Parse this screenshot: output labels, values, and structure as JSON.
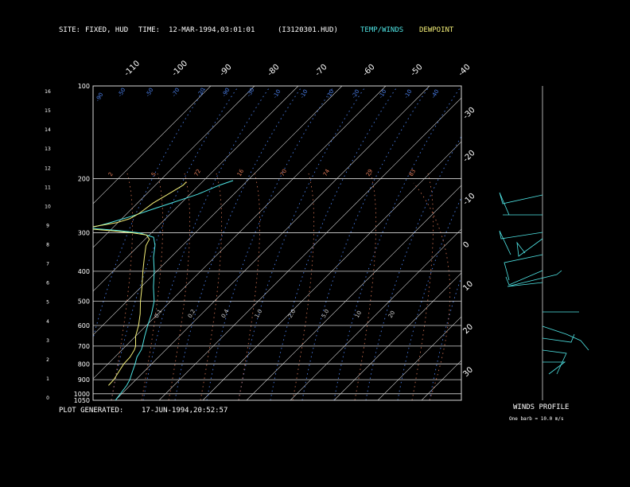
{
  "header": {
    "site_label": "SITE:",
    "site_value": "FIXED, HUD",
    "time_label": "TIME:",
    "time_value": "12-MAR-1994,03:01:01",
    "file_id": "(I3120301.HUD)",
    "legend_temp": "TEMP/WINDS",
    "legend_dew": "DEWPOINT"
  },
  "footer": {
    "generated_label": "PLOT GENERATED:",
    "generated_value": "17-JUN-1994,20:52:57",
    "winds_title": "WINDS PROFILE",
    "barb_note": "One barb = 10.0 m/s"
  },
  "colors": {
    "temp": "#4fe6e6",
    "dew": "#f5f078",
    "isotherm": "#d8d8d8",
    "isobar": "#d8d8d8",
    "dry_adiabat": "#4a7ee8",
    "mixing_ratio": "#e07a58"
  },
  "chart_data": {
    "type": "line",
    "pressure_levels": [
      "100",
      "200",
      "300",
      "400",
      "500",
      "600",
      "700",
      "800",
      "900",
      "1000",
      "1050"
    ],
    "height_km_ticks": [
      "16",
      "15",
      "14",
      "13",
      "12",
      "11",
      "10",
      "9",
      "8",
      "7",
      "6",
      "5",
      "4",
      "3",
      "2",
      "1",
      "0"
    ],
    "isotherm_top_labels": [
      "-110",
      "-100",
      "-90",
      "-80",
      "-70",
      "-60",
      "-50",
      "-40"
    ],
    "isotherm_right_labels": [
      "-30",
      "-20",
      "-10",
      "0",
      "10",
      "20",
      "30"
    ],
    "dry_adiabat_labels": [
      "-90",
      "-50",
      "-50",
      "-70",
      "-20",
      "-90",
      "-30",
      "-10",
      "-10",
      "-10",
      "-20",
      "-10",
      "-10",
      "-40"
    ],
    "mixing_ratio_labels": [
      "2",
      "5",
      "72",
      "16",
      "70",
      "74",
      "29",
      "83"
    ],
    "lower_ratio_labels": [
      "0.1",
      "0.2",
      "0.4",
      "1.0",
      "2.0",
      "5.0",
      "10",
      "20"
    ],
    "temperature": {
      "name": "TEMP/WINDS",
      "points": [
        [
          1050,
          -13
        ],
        [
          940,
          -14
        ],
        [
          900,
          -15
        ],
        [
          850,
          -17
        ],
        [
          800,
          -19
        ],
        [
          760,
          -21
        ],
        [
          720,
          -22
        ],
        [
          700,
          -23
        ],
        [
          650,
          -26
        ],
        [
          600,
          -29
        ],
        [
          550,
          -32
        ],
        [
          500,
          -36
        ],
        [
          450,
          -42
        ],
        [
          400,
          -48
        ],
        [
          360,
          -54
        ],
        [
          330,
          -58
        ],
        [
          310,
          -62
        ],
        [
          300,
          -70
        ],
        [
          295,
          -80
        ],
        [
          292,
          -88
        ],
        [
          290,
          -94
        ],
        [
          280,
          -88
        ],
        [
          265,
          -80
        ],
        [
          250,
          -73
        ],
        [
          240,
          -68
        ],
        [
          225,
          -60
        ],
        [
          210,
          -54
        ],
        [
          203,
          -50
        ]
      ]
    },
    "dewpoint": {
      "name": "DEWPOINT",
      "points": [
        [
          940,
          -22
        ],
        [
          900,
          -22
        ],
        [
          850,
          -23
        ],
        [
          800,
          -24
        ],
        [
          760,
          -24
        ],
        [
          720,
          -25
        ],
        [
          700,
          -26
        ],
        [
          650,
          -30
        ],
        [
          600,
          -33
        ],
        [
          550,
          -37
        ],
        [
          500,
          -42
        ],
        [
          450,
          -47
        ],
        [
          400,
          -53
        ],
        [
          360,
          -58
        ],
        [
          330,
          -62
        ],
        [
          315,
          -63
        ],
        [
          305,
          -66
        ],
        [
          300,
          -73
        ],
        [
          296,
          -82
        ],
        [
          292,
          -92
        ],
        [
          290,
          -96
        ],
        [
          286,
          -92
        ],
        [
          278,
          -84
        ],
        [
          270,
          -80
        ],
        [
          260,
          -78
        ],
        [
          250,
          -77
        ],
        [
          240,
          -76
        ],
        [
          225,
          -73
        ],
        [
          210,
          -70
        ],
        [
          205,
          -70
        ]
      ]
    },
    "xlim": [
      -110,
      40
    ],
    "ylim": [
      100,
      1050
    ]
  }
}
